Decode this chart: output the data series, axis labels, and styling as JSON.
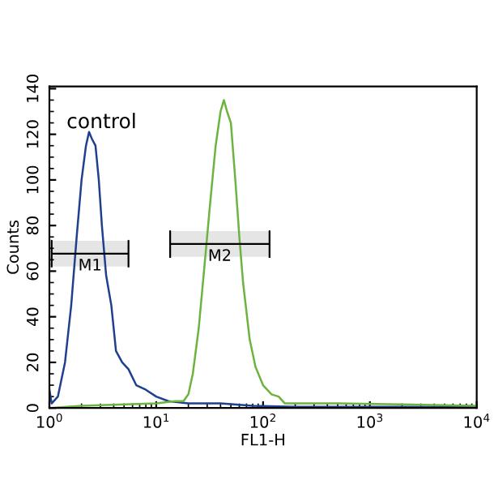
{
  "chart_data": {
    "type": "line",
    "xlabel": "FL1-H",
    "ylabel": "Counts",
    "log": "x",
    "grid": false,
    "legend": false,
    "xlim": [
      1,
      10000
    ],
    "ylim": [
      0,
      141
    ],
    "xticks": [
      {
        "value": 1,
        "label": "10$^{0}$"
      },
      {
        "value": 10,
        "label": "10$^{1}$"
      },
      {
        "value": 100,
        "label": "10$^{2}$"
      },
      {
        "value": 1000,
        "label": "10$^{3}$"
      },
      {
        "value": 10000,
        "label": "10$^{4}$"
      }
    ],
    "yticks": [
      0,
      20,
      40,
      60,
      80,
      100,
      120,
      140
    ],
    "annotations": [
      "control"
    ],
    "bands": [
      {
        "axis": "x",
        "from": 1.05,
        "to": 5.5,
        "label": "M1",
        "color": "#000000"
      },
      {
        "axis": "x",
        "from": 13.5,
        "to": 115,
        "label": "M2",
        "color": "#000000"
      }
    ],
    "series": [
      {
        "color": "#1f3f8f",
        "x": [
          1.0,
          1.05,
          1.2,
          1.4,
          1.6,
          1.8,
          2.0,
          2.2,
          2.35,
          2.5,
          2.7,
          2.9,
          3.1,
          3.4,
          3.8,
          4.2,
          4.8,
          5.5,
          6.5,
          8,
          10,
          13,
          20,
          40,
          80,
          200,
          10000
        ],
        "values": [
          8,
          2,
          5,
          20,
          45,
          75,
          100,
          115,
          121,
          118,
          115,
          100,
          80,
          58,
          45,
          25,
          20,
          17,
          10,
          8,
          5,
          3,
          2,
          2,
          1,
          0.5,
          0.5
        ]
      },
      {
        "color": "#6db33f",
        "x": [
          1,
          2,
          10,
          15,
          18,
          20,
          22,
          25,
          28,
          32,
          36,
          40,
          43,
          46,
          50,
          55,
          60,
          65,
          75,
          85,
          100,
          120,
          140,
          160,
          500,
          10000
        ],
        "values": [
          0,
          1,
          2,
          3,
          3,
          6,
          15,
          35,
          60,
          90,
          115,
          130,
          135,
          130,
          125,
          100,
          75,
          55,
          30,
          18,
          10,
          6,
          5,
          2,
          2,
          1
        ]
      }
    ]
  }
}
